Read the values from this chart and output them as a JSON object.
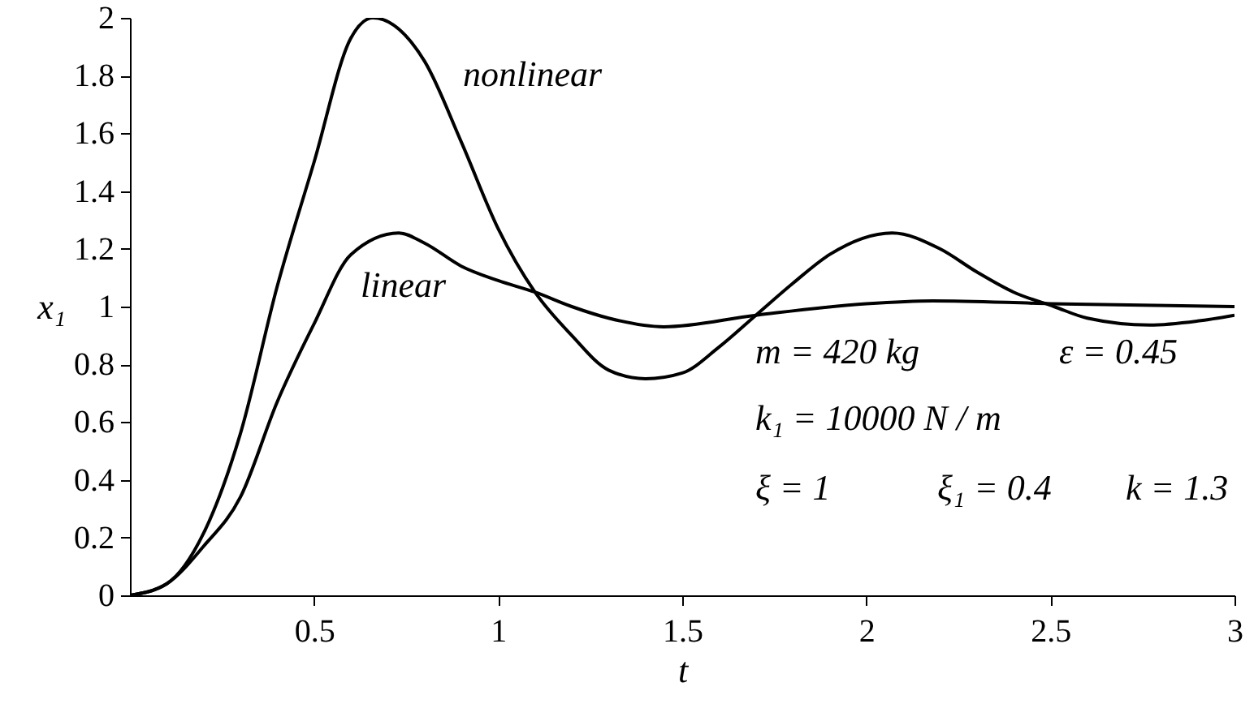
{
  "chart_data": {
    "type": "line",
    "xlabel": "t",
    "ylabel": "x₁",
    "xlim": [
      0,
      3
    ],
    "ylim": [
      0,
      2
    ],
    "xticks": [
      0.5,
      1,
      1.5,
      2,
      2.5,
      3
    ],
    "yticks": [
      0,
      0.2,
      0.4,
      0.6,
      0.8,
      1,
      1.2,
      1.4,
      1.6,
      1.8,
      2
    ],
    "grid": false,
    "marker": "none",
    "line_style": "solid",
    "series": [
      {
        "color": "#000000",
        "x": [
          0,
          0.1,
          0.2,
          0.3,
          0.4,
          0.5,
          0.6,
          0.66,
          0.8,
          0.9,
          1.0,
          1.1,
          1.2,
          1.3,
          1.4,
          1.5,
          1.6,
          1.7,
          1.8,
          1.9,
          2.07,
          2.2,
          2.3,
          2.4,
          2.51,
          2.6,
          2.77,
          2.9,
          3.0
        ],
        "values": [
          0,
          0.04,
          0.215,
          0.56,
          1.07,
          1.5,
          1.93,
          2.0,
          1.85,
          1.57,
          1.27,
          1.05,
          0.9,
          0.78,
          0.75,
          0.77,
          0.86,
          0.97,
          1.08,
          1.18,
          1.255,
          1.2,
          1.12,
          1.05,
          1.0,
          0.96,
          0.936,
          0.95,
          0.97
        ]
      },
      {
        "color": "#000000",
        "x": [
          0,
          0.1,
          0.2,
          0.3,
          0.4,
          0.5,
          0.6,
          0.73,
          0.8,
          0.9,
          1.0,
          1.1,
          1.2,
          1.3,
          1.45,
          1.7,
          2.0,
          2.18,
          2.5,
          3.0
        ],
        "values": [
          0,
          0.04,
          0.17,
          0.34,
          0.67,
          0.94,
          1.18,
          1.255,
          1.22,
          1.14,
          1.09,
          1.05,
          1.0,
          0.96,
          0.93,
          0.97,
          1.01,
          1.02,
          1.01,
          1.0
        ]
      }
    ],
    "annotations": [
      "nonlinear",
      "linear",
      "m = 420 kg",
      "ε = 0.45",
      "k₁ = 10000 N / m",
      "ξ = 1",
      "ξ₁ = 0.4",
      "k = 1.3"
    ]
  }
}
